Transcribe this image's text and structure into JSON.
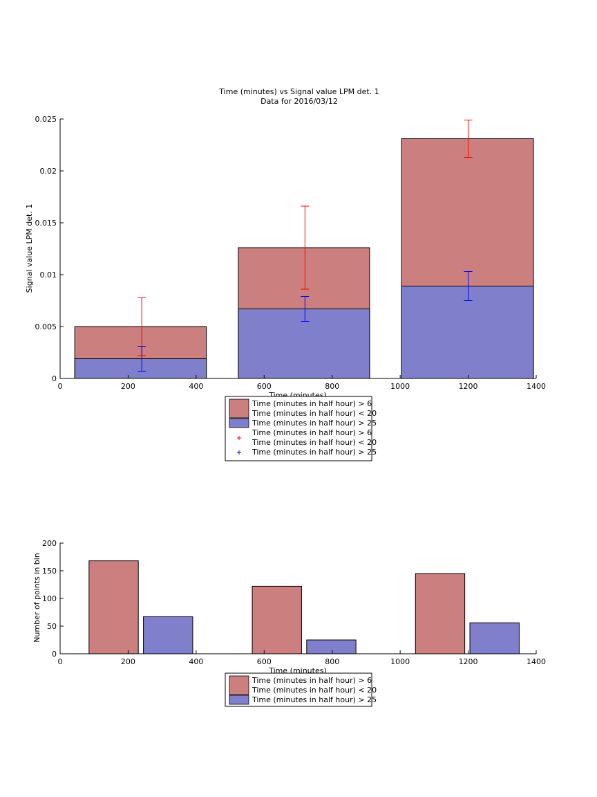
{
  "chart_data": [
    {
      "type": "bar",
      "subtype": "overlaid-bar-with-errorbars",
      "title": "Time (minutes) vs Signal value LPM det. 1",
      "subtitle": "Data for 2016/03/12",
      "xlabel": "Time (minutes)",
      "ylabel": "Signal value LPM det. 1",
      "xlim": [
        0,
        1400
      ],
      "ylim": [
        0,
        0.025
      ],
      "xticks": [
        0,
        200,
        400,
        600,
        800,
        1000,
        1200,
        1400
      ],
      "yticks": [
        0,
        0.005,
        0.01,
        0.015,
        0.02,
        0.025
      ],
      "xtick_labels": [
        "0",
        "200",
        "400",
        "600",
        "800",
        "1000",
        "1200",
        "1400"
      ],
      "ytick_labels": [
        "0",
        "0.005",
        "0.01",
        "0.015",
        "0.02",
        "0.025"
      ],
      "grid": false,
      "legend_position": "below",
      "bar_edges": [
        [
          43,
          430
        ],
        [
          524,
          910
        ],
        [
          1004,
          1392
        ]
      ],
      "series": [
        {
          "name": "Time (minutes in half hour) > 6\nTime (minutes in half hour) < 20",
          "color": "#cc7f7f",
          "errorbar_color": "#ff0000",
          "x": [
            240,
            720,
            1200
          ],
          "values": [
            0.005,
            0.0126,
            0.0231
          ],
          "errorbar_center": [
            0.005,
            0.0126,
            0.0231
          ],
          "error": [
            0.0028,
            0.004,
            0.0018
          ]
        },
        {
          "name": "Time (minutes in half hour) > 25",
          "color": "#7f7fcc",
          "errorbar_color": "#0000ff",
          "x": [
            240,
            720,
            1200
          ],
          "values": [
            0.0019,
            0.0067,
            0.0089
          ],
          "errorbar_center": [
            0.0019,
            0.0067,
            0.0089
          ],
          "error": [
            0.0012,
            0.0012,
            0.0014
          ]
        }
      ],
      "legend": [
        {
          "kind": "patch",
          "color": "#cc7f7f",
          "lines": [
            "Time (minutes in half hour) > 6",
            "Time (minutes in half hour) < 20"
          ]
        },
        {
          "kind": "patch",
          "color": "#7f7fcc",
          "lines": [
            "Time (minutes in half hour) > 25"
          ]
        },
        {
          "kind": "marker",
          "color": "#ff0000",
          "lines": [
            "Time (minutes in half hour) > 6",
            "Time (minutes in half hour) < 20"
          ]
        },
        {
          "kind": "marker",
          "color": "#0000ff",
          "lines": [
            "Time (minutes in half hour) > 25"
          ]
        }
      ]
    },
    {
      "type": "bar",
      "subtype": "grouped-bar",
      "title": "",
      "xlabel": "Time (minutes)",
      "ylabel": "Number of points in bin",
      "xlim": [
        0,
        1400
      ],
      "ylim": [
        0,
        200
      ],
      "xticks": [
        0,
        200,
        400,
        600,
        800,
        1000,
        1200,
        1400
      ],
      "yticks": [
        0,
        50,
        100,
        150,
        200
      ],
      "xtick_labels": [
        "0",
        "200",
        "400",
        "600",
        "800",
        "1000",
        "1200",
        "1400"
      ],
      "ytick_labels": [
        "0",
        "50",
        "100",
        "150",
        "200"
      ],
      "grid": false,
      "legend_position": "below",
      "series": [
        {
          "name": "Time (minutes in half hour) > 6\nTime (minutes in half hour) < 20",
          "color": "#cc7f7f",
          "bar_edges": [
            [
              85,
              230
            ],
            [
              565,
              710
            ],
            [
              1045,
              1190
            ]
          ],
          "values": [
            168,
            122,
            145
          ]
        },
        {
          "name": "Time (minutes in half hour) > 25",
          "color": "#7f7fcc",
          "bar_edges": [
            [
              245,
              390
            ],
            [
              725,
              870
            ],
            [
              1205,
              1350
            ]
          ],
          "values": [
            67,
            25,
            56
          ]
        }
      ],
      "legend": [
        {
          "kind": "patch",
          "color": "#cc7f7f",
          "lines": [
            "Time (minutes in half hour) > 6",
            "Time (minutes in half hour) < 20"
          ]
        },
        {
          "kind": "patch",
          "color": "#7f7fcc",
          "lines": [
            "Time (minutes in half hour) > 25"
          ]
        }
      ]
    }
  ]
}
